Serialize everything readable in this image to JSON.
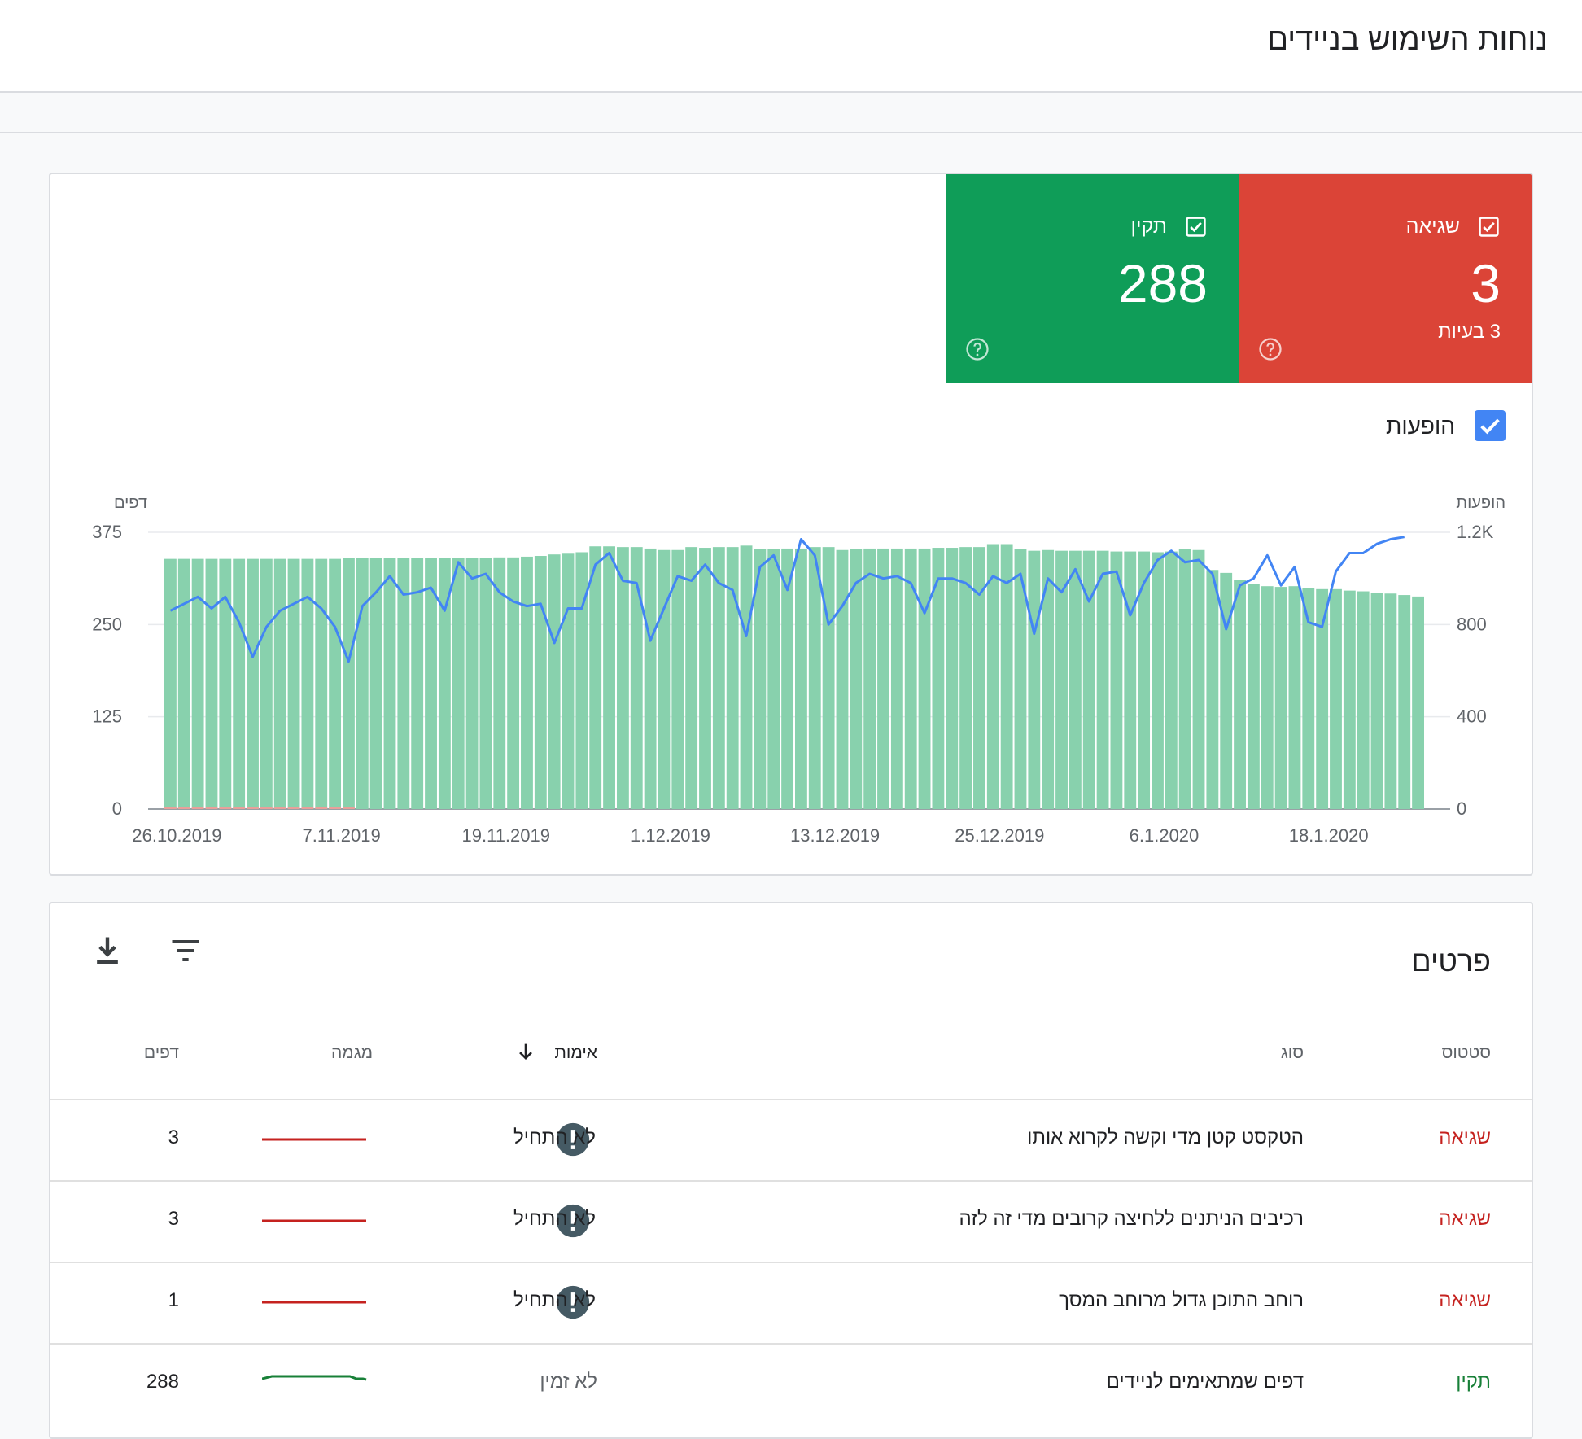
{
  "page": {
    "title": "נוחות השימוש בניידים"
  },
  "summary": {
    "error": {
      "label": "שגיאה",
      "value": "3",
      "sub": "3 בעיות",
      "color": "#db4437"
    },
    "valid": {
      "label": "תקין",
      "value": "288",
      "color": "#0f9d58"
    }
  },
  "legend": {
    "impressions_label": "הופעות",
    "checked": true
  },
  "chart_data": {
    "type": "bar",
    "left_axis_label": "דפים",
    "right_axis_label": "הופעות",
    "left_ticks": [
      "0",
      "125",
      "250",
      "375"
    ],
    "right_ticks": [
      "0",
      "400",
      "800",
      "1.2K"
    ],
    "ylim_left": [
      0,
      375
    ],
    "ylim_right": [
      0,
      1200
    ],
    "x_tick_labels": [
      "26.10.2019",
      "7.11.2019",
      "19.11.2019",
      "1.12.2019",
      "13.12.2019",
      "25.12.2019",
      "6.1.2020",
      "18.1.2020"
    ],
    "x_tick_indices": [
      0,
      12,
      24,
      36,
      48,
      60,
      72,
      84
    ],
    "series": [
      {
        "name": "תקין",
        "type": "bar",
        "color": "#88d1ad",
        "values": [
          339,
          339,
          339,
          339,
          339,
          339,
          339,
          339,
          339,
          339,
          339,
          339,
          339,
          340,
          340,
          340,
          340,
          340,
          340,
          340,
          340,
          340,
          340,
          340,
          341,
          341,
          342,
          343,
          345,
          346,
          348,
          356,
          356,
          355,
          355,
          353,
          351,
          351,
          355,
          354,
          355,
          355,
          357,
          352,
          352,
          353,
          353,
          355,
          355,
          351,
          352,
          353,
          353,
          353,
          353,
          353,
          354,
          354,
          355,
          355,
          359,
          359,
          352,
          350,
          351,
          350,
          350,
          350,
          350,
          349,
          349,
          349,
          348,
          349,
          352,
          351,
          324,
          320,
          310,
          305,
          302,
          301,
          302,
          299,
          298,
          298,
          296,
          295,
          293,
          292,
          290,
          288
        ]
      },
      {
        "name": "שגיאה",
        "type": "bar",
        "color": "#e8a09a",
        "values": [
          1,
          1,
          1,
          1,
          1,
          1,
          1,
          1,
          1,
          1,
          1,
          1,
          1,
          1,
          0,
          0,
          0,
          0,
          0,
          0,
          0,
          0,
          0,
          0,
          0,
          0,
          0,
          0,
          0,
          0,
          0,
          0,
          0,
          0,
          0,
          0,
          0,
          0,
          0,
          0,
          0,
          0,
          0,
          0,
          0,
          0,
          0,
          0,
          0,
          0,
          0,
          0,
          0,
          0,
          0,
          0,
          0,
          0,
          0,
          0,
          0,
          0,
          0,
          0,
          0,
          0,
          0,
          0,
          0,
          0,
          0,
          0,
          0,
          0,
          0,
          0,
          0,
          0,
          0,
          0,
          0,
          0,
          0,
          0,
          0,
          0,
          0,
          0,
          0,
          0,
          0,
          0
        ]
      },
      {
        "name": "הופעות",
        "type": "line",
        "color": "#4285f4",
        "values": [
          860,
          890,
          920,
          870,
          920,
          810,
          660,
          790,
          860,
          890,
          920,
          870,
          790,
          640,
          880,
          940,
          1010,
          930,
          940,
          960,
          860,
          1070,
          1000,
          1020,
          940,
          900,
          880,
          890,
          720,
          870,
          870,
          1060,
          1110,
          990,
          980,
          730,
          870,
          1010,
          990,
          1060,
          980,
          950,
          750,
          1050,
          1100,
          950,
          1170,
          1100,
          800,
          880,
          980,
          1020,
          1000,
          1010,
          980,
          850,
          1000,
          1000,
          980,
          930,
          1010,
          980,
          1020,
          760,
          1000,
          940,
          1040,
          900,
          1020,
          1030,
          840,
          980,
          1080,
          1120,
          1070,
          1080,
          1020,
          780,
          970,
          1000,
          1100,
          970,
          1050,
          810,
          790,
          1030,
          1110,
          1110,
          1150,
          1170,
          1180
        ]
      }
    ]
  },
  "details": {
    "title": "פרטים",
    "columns": {
      "status": "סטטוס",
      "type": "סוג",
      "validation": "אימות",
      "trend": "מגמה",
      "pages": "דפים"
    },
    "rows": [
      {
        "status": "שגיאה",
        "type": "הטקסט קטן מדי וקשה לקרוא אותו",
        "validation": "לא התחיל",
        "pages": "3",
        "trend_color": "#c5221f"
      },
      {
        "status": "שגיאה",
        "type": "רכיבים הניתנים ללחיצה קרובים מדי זה לזה",
        "validation": "לא התחיל",
        "pages": "3",
        "trend_color": "#c5221f"
      },
      {
        "status": "שגיאה",
        "type": "רוחב התוכן גדול מרוחב המסך",
        "validation": "לא התחיל",
        "pages": "1",
        "trend_color": "#c5221f"
      },
      {
        "status": "תקין",
        "type": "דפים שמתאימים לניידים",
        "validation": "לא זמין",
        "pages": "288",
        "trend_color": "#188038"
      }
    ]
  }
}
